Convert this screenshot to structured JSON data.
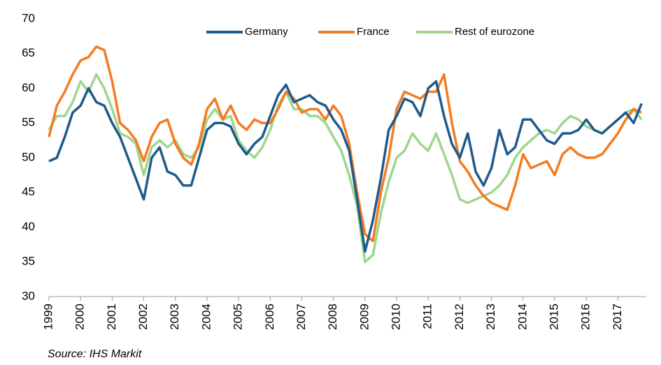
{
  "chart_data": {
    "type": "line",
    "source": "Source: IHS Markit",
    "x": [
      1999,
      1999.25,
      1999.5,
      1999.75,
      2000,
      2000.25,
      2000.5,
      2000.75,
      2001,
      2001.25,
      2001.5,
      2001.75,
      2002,
      2002.25,
      2002.5,
      2002.75,
      2003,
      2003.25,
      2003.5,
      2003.75,
      2004,
      2004.25,
      2004.5,
      2004.75,
      2005,
      2005.25,
      2005.5,
      2005.75,
      2006,
      2006.25,
      2006.5,
      2006.75,
      2007,
      2007.25,
      2007.5,
      2007.75,
      2008,
      2008.25,
      2008.5,
      2008.75,
      2009,
      2009.25,
      2009.5,
      2009.75,
      2010,
      2010.25,
      2010.5,
      2010.75,
      2011,
      2011.25,
      2011.5,
      2011.75,
      2012,
      2012.25,
      2012.5,
      2012.75,
      2013,
      2013.25,
      2013.5,
      2013.75,
      2014,
      2014.25,
      2014.5,
      2014.75,
      2015,
      2015.25,
      2015.5,
      2015.75,
      2016,
      2016.25,
      2016.5,
      2016.75,
      2017,
      2017.25,
      2017.5,
      2017.75
    ],
    "series": [
      {
        "name": "Germany",
        "color": "#1f5a8c",
        "values": [
          49.5,
          50,
          53,
          56.5,
          57.5,
          60,
          58,
          57.5,
          55,
          53,
          50,
          47,
          44,
          50,
          51.5,
          48,
          47.5,
          46,
          46,
          50,
          54,
          55,
          55,
          54.5,
          52,
          50.5,
          52,
          53,
          56,
          59,
          60.5,
          58,
          58.5,
          59,
          58,
          57.5,
          55.5,
          54,
          51,
          44,
          36.5,
          41,
          47,
          54,
          56,
          58.5,
          58,
          56,
          60,
          61,
          56,
          52,
          50,
          53.5,
          48,
          46,
          48.5,
          54,
          50.5,
          51.5,
          55.5,
          55.5,
          54,
          52.5,
          52,
          53.5,
          53.5,
          54,
          55.5,
          54,
          53.5,
          54.5,
          55.5,
          56.5,
          55,
          57.8
        ]
      },
      {
        "name": "France",
        "color": "#f47b20",
        "values": [
          53,
          57.5,
          59.5,
          62,
          64,
          64.5,
          66,
          65.5,
          61,
          55,
          54,
          52.5,
          49.5,
          53,
          55,
          55.5,
          52,
          50,
          49,
          52,
          57,
          58.5,
          55.5,
          57.5,
          55,
          54,
          55.5,
          55,
          55,
          57,
          59.5,
          58.5,
          56.5,
          57,
          57,
          55.5,
          57.5,
          56,
          52,
          45,
          39,
          38,
          45,
          50,
          57,
          59.5,
          59,
          58.5,
          59.5,
          59.5,
          62,
          55,
          49.5,
          48,
          46,
          44.5,
          43.5,
          43,
          42.5,
          46,
          50.5,
          48.5,
          49,
          49.5,
          47.5,
          50.5,
          51.5,
          50.5,
          50,
          50,
          50.5,
          52,
          53.5,
          55.5,
          57,
          56.5
        ]
      },
      {
        "name": "Rest of eurozone",
        "color": "#9fd68e",
        "values": [
          54,
          56,
          56,
          58,
          61,
          59.5,
          62,
          60,
          57,
          53.5,
          53,
          52,
          47.5,
          51.5,
          52.5,
          51.5,
          52.5,
          50.5,
          50,
          51.5,
          55.5,
          57,
          55.5,
          56,
          52.5,
          51,
          50,
          51.5,
          54,
          57.5,
          59.5,
          57,
          57,
          56,
          56,
          55,
          53,
          51,
          47.5,
          43,
          35,
          36,
          42,
          46.5,
          50,
          51,
          53.5,
          52,
          51,
          53.5,
          50.5,
          47.5,
          44,
          43.5,
          44,
          44.5,
          45,
          46,
          47.5,
          50,
          51.5,
          52.5,
          53.5,
          54,
          53.5,
          55,
          56,
          55.5,
          54.5,
          54,
          53.5,
          54.5,
          55.5,
          56.5,
          57,
          55.5
        ]
      }
    ],
    "xlim": [
      1999,
      2017.9
    ],
    "xticks": [
      1999,
      2000,
      2001,
      2002,
      2003,
      2004,
      2005,
      2006,
      2007,
      2008,
      2009,
      2010,
      2011,
      2012,
      2013,
      2014,
      2015,
      2016,
      2017
    ],
    "ylim": [
      30,
      70
    ],
    "yticks": [
      30,
      35,
      40,
      45,
      50,
      55,
      60,
      65,
      70
    ],
    "legend": "top"
  }
}
